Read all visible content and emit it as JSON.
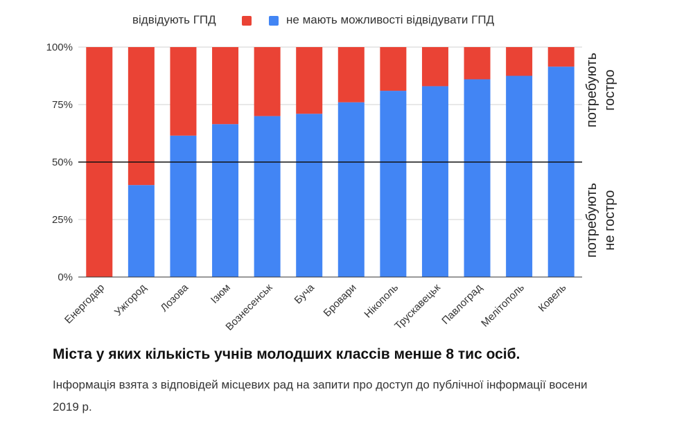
{
  "chart_data": {
    "type": "bar",
    "stacked": true,
    "categories": [
      "Енергодар",
      "Ужгород",
      "Лозова",
      "Ізюм",
      "Вознесенськ",
      "Буча",
      "Бровари",
      "Нікополь",
      "Трускавецьк",
      "Павлоград",
      "Мелітополь",
      "Ковель"
    ],
    "series": [
      {
        "name": "не мають можливості відвідувати ГПД",
        "color": "#4285f4",
        "values": [
          0,
          40,
          61.5,
          66.5,
          70,
          71,
          76,
          81,
          83,
          86,
          87.5,
          91.5
        ]
      },
      {
        "name": "відвідують ГПД",
        "color": "#ea4335",
        "values": [
          100,
          60,
          38.5,
          33.5,
          30,
          29,
          24,
          19,
          17,
          14,
          12.5,
          8.5
        ]
      }
    ],
    "ylim": [
      0,
      100
    ],
    "yticks": [
      "0%",
      "25%",
      "50%",
      "75%",
      "100%"
    ],
    "reference_line": 50,
    "legend": {
      "position": "top",
      "order": [
        "відвідують ГПД",
        "не мають можливості відвідувати ГПД"
      ]
    },
    "side_labels": {
      "upper": [
        "потребують",
        "гостро"
      ],
      "lower": [
        "потребують",
        "не гостро"
      ]
    },
    "grid": "horizontal"
  },
  "caption": {
    "title": "Міста у яких кількість учнів молодших классів менше 8 тис осіб.",
    "note": "Інформація взята з відповідей місцевих рад на запити про доступ до публічної інформації восени 2019 р."
  }
}
